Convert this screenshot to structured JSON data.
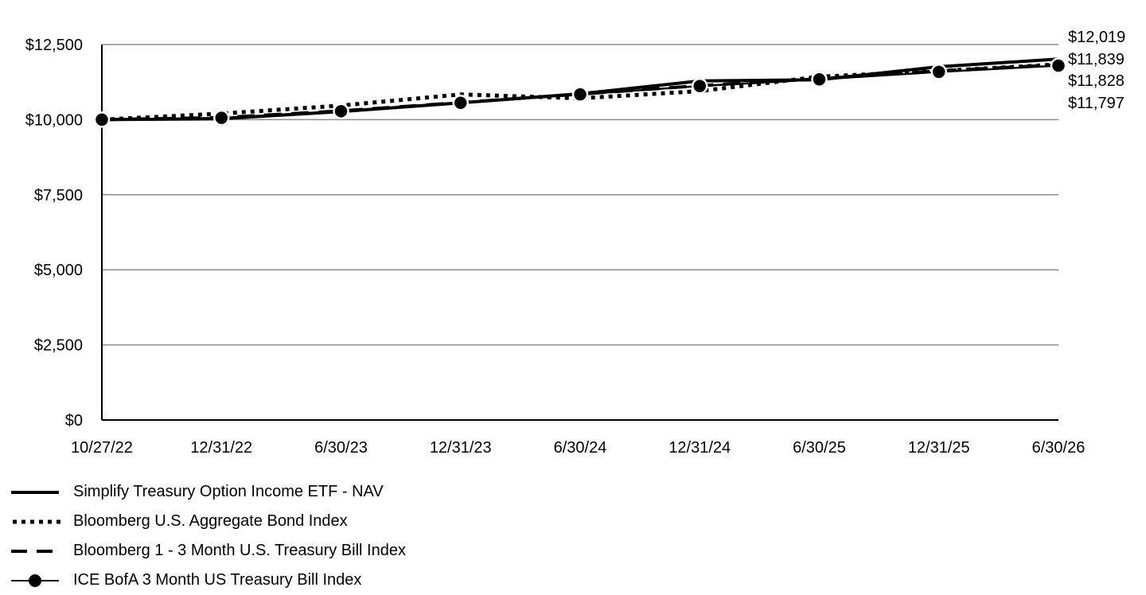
{
  "chart_data": {
    "type": "line",
    "title": "",
    "xlabel": "",
    "ylabel": "",
    "x": [
      "10/27/22",
      "12/31/22",
      "6/30/23",
      "12/31/23",
      "6/30/24",
      "12/31/24",
      "6/30/25",
      "12/31/25",
      "6/30/26"
    ],
    "ylim": [
      0,
      12500
    ],
    "yticks": [
      0,
      2500,
      5000,
      7500,
      10000,
      12500
    ],
    "ytick_labels": [
      "$0",
      "$2,500",
      "$5,000",
      "$7,500",
      "$10,000",
      "$12,500"
    ],
    "grid": "horizontal",
    "legend_position": "bottom-left",
    "series": [
      {
        "name": "Simplify Treasury Option Income ETF - NAV",
        "style": "solid",
        "values": [
          10000,
          10030,
          10270,
          10560,
          10860,
          11290,
          11330,
          11760,
          12019
        ],
        "end_label": "$12,019"
      },
      {
        "name": "Bloomberg U.S. Aggregate Bond Index",
        "style": "dotted",
        "values": [
          10000,
          10200,
          10470,
          10840,
          10710,
          10950,
          11430,
          11620,
          11839
        ],
        "end_label": "$11,839"
      },
      {
        "name": "Bloomberg 1 - 3 Month U.S. Treasury Bill Index",
        "style": "dashed",
        "values": [
          10000,
          10070,
          10290,
          10570,
          10850,
          11130,
          11360,
          11620,
          11828
        ],
        "end_label": "$11,828"
      },
      {
        "name": "ICE BofA 3 Month US Treasury Bill Index",
        "style": "solid-markers",
        "values": [
          10000,
          10060,
          10280,
          10560,
          10840,
          11120,
          11340,
          11590,
          11797
        ],
        "end_label": "$11,797"
      }
    ]
  }
}
